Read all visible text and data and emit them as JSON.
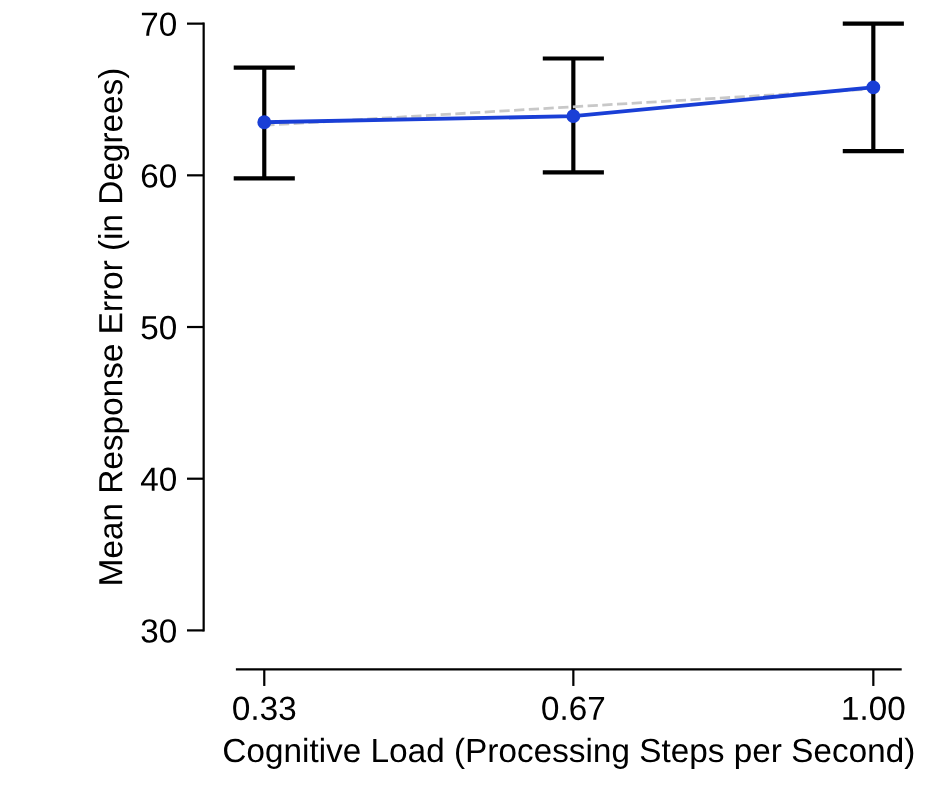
{
  "chart_data": {
    "type": "line",
    "xlabel": "Cognitive Load (Processing Steps per Second)",
    "ylabel": "Mean Response Error (in Degrees)",
    "x": [
      0.33,
      0.67,
      1.0
    ],
    "series": [
      {
        "color": "#1a3fd6",
        "values": [
          63.5,
          63.9,
          65.8
        ],
        "errors": [
          [
            59.8,
            67.1
          ],
          [
            60.2,
            67.7
          ],
          [
            61.6,
            70.0
          ]
        ],
        "marker": "circle",
        "line_style": "solid"
      },
      {
        "color": "#c8c8c8",
        "values": [
          63.3,
          65.7
        ],
        "x": [
          0.33,
          1.0
        ],
        "marker": "none",
        "line_style": "dashed"
      }
    ],
    "xlim": [
      0.3,
      1.03
    ],
    "xticks": [
      {
        "value": 0.33,
        "label": "0.33"
      },
      {
        "value": 0.67,
        "label": "0.67"
      },
      {
        "value": 1.0,
        "label": "1.00"
      }
    ],
    "ylim": [
      30,
      70
    ],
    "yticks": [
      30,
      40,
      50,
      60,
      70
    ],
    "grid": false,
    "legend": false
  }
}
